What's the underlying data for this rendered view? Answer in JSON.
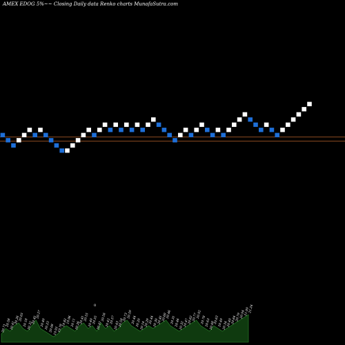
{
  "header": {
    "title": "AMEX  EDOG 5%~~  Closing Daily data  Renko  charts MunafaSutra.com"
  },
  "chart_data": {
    "type": "renko",
    "title": "AMEX  EDOG 5%~~  Closing Daily data  Renko  charts MunafaSutra.com",
    "colors": {
      "up": "#ffffff",
      "down": "#1e6fd8",
      "reference_line": "#b8622a",
      "volume": "#0f3a0f",
      "volume_edge": "#2e8b2e"
    },
    "bricks": [
      {
        "col": 0,
        "level": 5,
        "dir": "down"
      },
      {
        "col": 1,
        "level": 4,
        "dir": "down"
      },
      {
        "col": 2,
        "level": 3,
        "dir": "down"
      },
      {
        "col": 3,
        "level": 4,
        "dir": "up"
      },
      {
        "col": 4,
        "level": 5,
        "dir": "up"
      },
      {
        "col": 5,
        "level": 6,
        "dir": "up"
      },
      {
        "col": 6,
        "level": 5,
        "dir": "down"
      },
      {
        "col": 7,
        "level": 6,
        "dir": "up"
      },
      {
        "col": 8,
        "level": 5,
        "dir": "down"
      },
      {
        "col": 9,
        "level": 4,
        "dir": "down"
      },
      {
        "col": 10,
        "level": 3,
        "dir": "down"
      },
      {
        "col": 11,
        "level": 2,
        "dir": "down"
      },
      {
        "col": 12,
        "level": 2,
        "dir": "up"
      },
      {
        "col": 13,
        "level": 3,
        "dir": "up"
      },
      {
        "col": 14,
        "level": 4,
        "dir": "up"
      },
      {
        "col": 15,
        "level": 5,
        "dir": "up"
      },
      {
        "col": 16,
        "level": 6,
        "dir": "up"
      },
      {
        "col": 17,
        "level": 5,
        "dir": "down"
      },
      {
        "col": 18,
        "level": 6,
        "dir": "up"
      },
      {
        "col": 19,
        "level": 7,
        "dir": "up"
      },
      {
        "col": 20,
        "level": 6,
        "dir": "down"
      },
      {
        "col": 21,
        "level": 7,
        "dir": "up"
      },
      {
        "col": 22,
        "level": 6,
        "dir": "down"
      },
      {
        "col": 23,
        "level": 7,
        "dir": "up"
      },
      {
        "col": 24,
        "level": 6,
        "dir": "down"
      },
      {
        "col": 25,
        "level": 7,
        "dir": "up"
      },
      {
        "col": 26,
        "level": 6,
        "dir": "down"
      },
      {
        "col": 27,
        "level": 7,
        "dir": "up"
      },
      {
        "col": 28,
        "level": 8,
        "dir": "up"
      },
      {
        "col": 29,
        "level": 7,
        "dir": "down"
      },
      {
        "col": 30,
        "level": 6,
        "dir": "down"
      },
      {
        "col": 31,
        "level": 5,
        "dir": "down"
      },
      {
        "col": 32,
        "level": 4,
        "dir": "down"
      },
      {
        "col": 33,
        "level": 5,
        "dir": "up"
      },
      {
        "col": 34,
        "level": 6,
        "dir": "up"
      },
      {
        "col": 35,
        "level": 5,
        "dir": "down"
      },
      {
        "col": 36,
        "level": 6,
        "dir": "up"
      },
      {
        "col": 37,
        "level": 7,
        "dir": "up"
      },
      {
        "col": 38,
        "level": 6,
        "dir": "down"
      },
      {
        "col": 39,
        "level": 5,
        "dir": "down"
      },
      {
        "col": 40,
        "level": 6,
        "dir": "up"
      },
      {
        "col": 41,
        "level": 5,
        "dir": "down"
      },
      {
        "col": 42,
        "level": 6,
        "dir": "up"
      },
      {
        "col": 43,
        "level": 7,
        "dir": "up"
      },
      {
        "col": 44,
        "level": 8,
        "dir": "up"
      },
      {
        "col": 45,
        "level": 9,
        "dir": "up"
      },
      {
        "col": 46,
        "level": 8,
        "dir": "down"
      },
      {
        "col": 47,
        "level": 7,
        "dir": "down"
      },
      {
        "col": 48,
        "level": 6,
        "dir": "down"
      },
      {
        "col": 49,
        "level": 7,
        "dir": "up"
      },
      {
        "col": 50,
        "level": 6,
        "dir": "down"
      },
      {
        "col": 51,
        "level": 5,
        "dir": "down"
      },
      {
        "col": 52,
        "level": 6,
        "dir": "up"
      },
      {
        "col": 53,
        "level": 7,
        "dir": "up"
      },
      {
        "col": 54,
        "level": 8,
        "dir": "up"
      },
      {
        "col": 55,
        "level": 9,
        "dir": "up"
      },
      {
        "col": 56,
        "level": 10,
        "dir": "up"
      },
      {
        "col": 57,
        "level": 11,
        "dir": "up"
      }
    ],
    "reference_lines": [
      5.15,
      4.35
    ],
    "volume_marker": "0",
    "volume_labels": [
      "20.71",
      "20.58",
      "20.41",
      "20.26",
      "20.03",
      "20.18",
      "20.32",
      "20.45",
      "20.27",
      "20.40",
      "20.23",
      "20.08",
      "19.93",
      "19.78",
      "19.82",
      "19.96",
      "20.11",
      "20.26",
      "20.41",
      "20.55",
      "20.40",
      "20.55",
      "20.41",
      "20.56",
      "20.42",
      "20.57",
      "20.43",
      "20.58",
      "20.73",
      "20.59",
      "20.44",
      "20.29",
      "20.14",
      "20.29",
      "20.44",
      "20.30",
      "20.45",
      "20.60",
      "20.46",
      "20.31",
      "20.46",
      "20.32",
      "20.47",
      "20.62",
      "20.77",
      "20.92",
      "20.78",
      "20.63",
      "20.48",
      "20.63",
      "20.49",
      "20.34",
      "20.49",
      "20.64",
      "20.79",
      "20.94",
      "21.09",
      "21.24"
    ],
    "volumes": [
      3,
      5,
      4,
      6,
      7,
      5,
      4,
      6,
      8,
      5,
      4,
      3,
      2,
      3,
      5,
      6,
      5,
      4,
      6,
      7,
      5,
      6,
      4,
      7,
      5,
      6,
      4,
      5,
      7,
      8,
      6,
      5,
      4,
      5,
      6,
      5,
      6,
      7,
      8,
      6,
      5,
      4,
      5,
      6,
      7,
      8,
      6,
      5,
      4,
      6,
      5,
      4,
      5,
      6,
      7,
      8,
      9,
      10
    ],
    "grid": false,
    "legend": "none"
  }
}
